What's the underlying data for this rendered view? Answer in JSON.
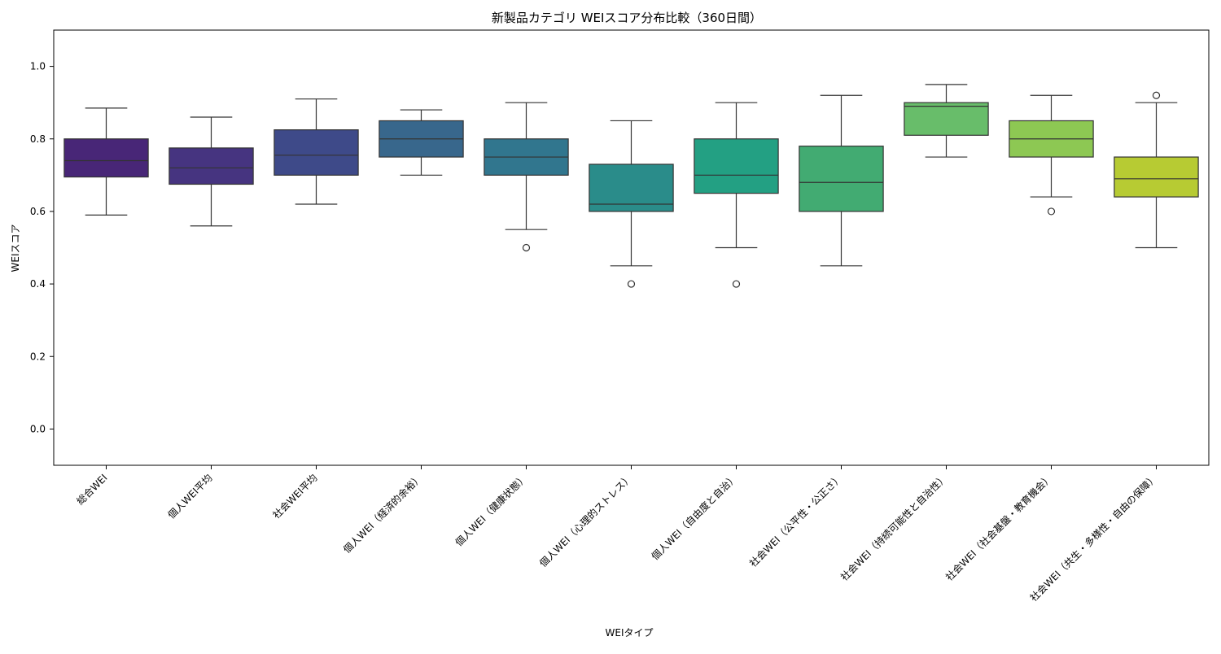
{
  "chart_data": {
    "type": "box",
    "title": "新製品カテゴリ WEIスコア分布比較（360日間）",
    "xlabel": "WEIタイプ",
    "ylabel": "WEIスコア",
    "ylim": [
      -0.1,
      1.1
    ],
    "yticks": [
      "0.0",
      "0.2",
      "0.4",
      "0.6",
      "0.8",
      "1.0"
    ],
    "grid": false,
    "legend": "none",
    "categories": [
      "総合WEI",
      "個人WEI平均",
      "社会WEI平均",
      "個人WEI（経済的余裕）",
      "個人WEI（健康状態）",
      "個人WEI（心理的ストレス）",
      "個人WEI（自由度と自治）",
      "社会WEI（公平性・公正さ）",
      "社会WEI（持続可能性と自治性）",
      "社会WEI（社会基盤・教育機会）",
      "社会WEI（共生・多様性・自由の保障）"
    ],
    "boxes": [
      {
        "whisker_low": 0.59,
        "q1": 0.695,
        "median": 0.74,
        "q3": 0.8,
        "whisker_high": 0.885,
        "outliers": [],
        "color": "#482677"
      },
      {
        "whisker_low": 0.56,
        "q1": 0.675,
        "median": 0.72,
        "q3": 0.775,
        "whisker_high": 0.86,
        "outliers": [],
        "color": "#463480"
      },
      {
        "whisker_low": 0.62,
        "q1": 0.7,
        "median": 0.755,
        "q3": 0.825,
        "whisker_high": 0.91,
        "outliers": [],
        "color": "#3e4a89"
      },
      {
        "whisker_low": 0.7,
        "q1": 0.75,
        "median": 0.8,
        "q3": 0.85,
        "whisker_high": 0.88,
        "outliers": [],
        "color": "#38678c"
      },
      {
        "whisker_low": 0.55,
        "q1": 0.7,
        "median": 0.75,
        "q3": 0.8,
        "whisker_high": 0.9,
        "outliers": [
          0.5
        ],
        "color": "#31768e"
      },
      {
        "whisker_low": 0.45,
        "q1": 0.6,
        "median": 0.62,
        "q3": 0.73,
        "whisker_high": 0.85,
        "outliers": [
          0.4
        ],
        "color": "#2a8c8a"
      },
      {
        "whisker_low": 0.5,
        "q1": 0.65,
        "median": 0.7,
        "q3": 0.8,
        "whisker_high": 0.9,
        "outliers": [
          0.4
        ],
        "color": "#23a083"
      },
      {
        "whisker_low": 0.45,
        "q1": 0.6,
        "median": 0.68,
        "q3": 0.78,
        "whisker_high": 0.92,
        "outliers": [],
        "color": "#42ab72"
      },
      {
        "whisker_low": 0.75,
        "q1": 0.81,
        "median": 0.89,
        "q3": 0.9,
        "whisker_high": 0.95,
        "outliers": [],
        "color": "#68bd6a"
      },
      {
        "whisker_low": 0.64,
        "q1": 0.75,
        "median": 0.8,
        "q3": 0.85,
        "whisker_high": 0.92,
        "outliers": [
          0.6
        ],
        "color": "#8dc853"
      },
      {
        "whisker_low": 0.5,
        "q1": 0.64,
        "median": 0.69,
        "q3": 0.75,
        "whisker_high": 0.9,
        "outliers": [
          0.92
        ],
        "color": "#b7cb33"
      }
    ]
  }
}
